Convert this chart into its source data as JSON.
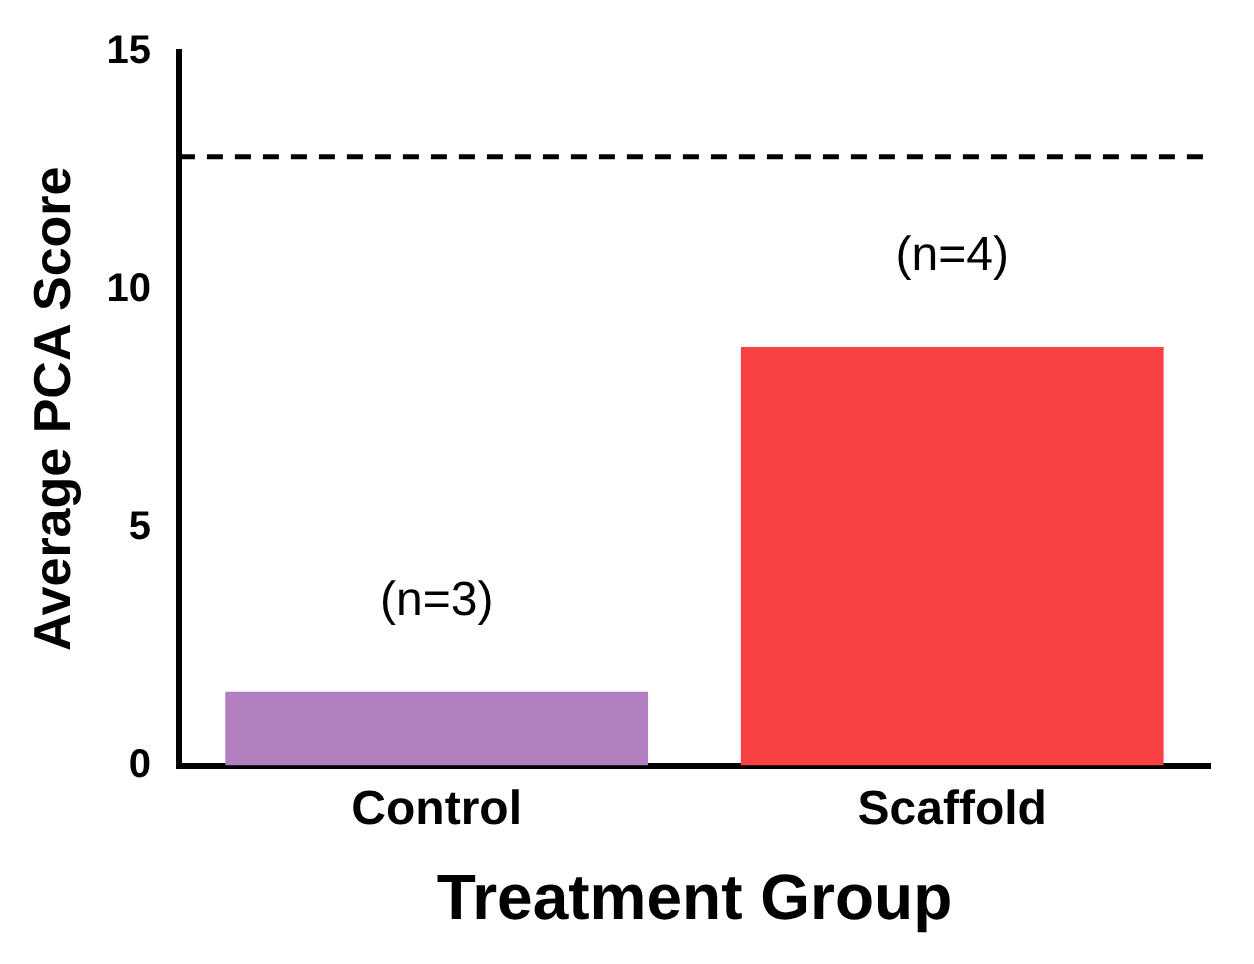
{
  "chart_data": {
    "type": "bar",
    "xlabel": "Treatment Group",
    "ylabel": "Average PCA Score",
    "categories": [
      "Control",
      "Scaffold"
    ],
    "values": [
      1.55,
      8.8
    ],
    "colors": [
      "#b27fc0",
      "#f94144"
    ],
    "ylim": [
      0,
      15
    ],
    "yticks": [
      0,
      5,
      10,
      15
    ],
    "grid": false,
    "legend": false,
    "ref_lines": [
      {
        "axis": "y",
        "value": 12.8,
        "color": "#000000",
        "line_style": "dashed"
      }
    ],
    "annotations": [
      "(n=3)",
      "(n=4)"
    ]
  }
}
